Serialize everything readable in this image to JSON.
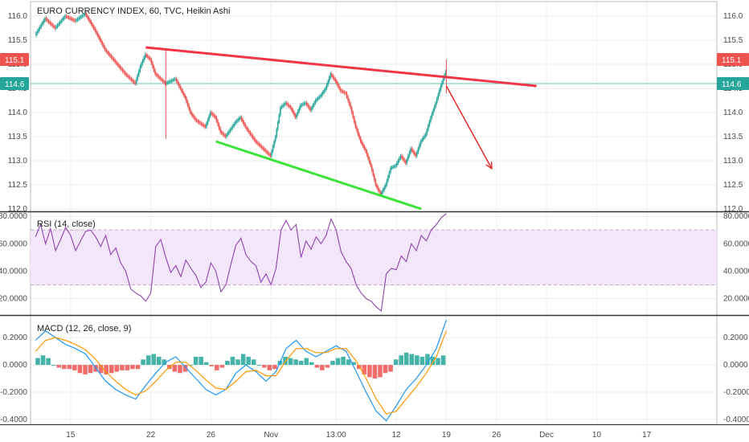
{
  "chart_data": [
    {
      "type": "candlestick",
      "title": "EURO CURRENCY INDEX, 60, TVC, Heikin Ashi",
      "y_ticks": [
        "116.0",
        "115.5",
        "115.0",
        "114.5",
        "114.0",
        "113.5",
        "113.0",
        "112.5",
        "112.0"
      ],
      "y_tick_values": [
        116.0,
        115.5,
        115.0,
        114.5,
        114.0,
        113.5,
        113.0,
        112.5,
        112.0
      ],
      "ylim": [
        111.95,
        116.3
      ],
      "price_badges": [
        {
          "label": "115.1",
          "value": 115.1,
          "color": "#ef5350"
        },
        {
          "label": "114.6",
          "value": 114.6,
          "color": "#26a69a"
        }
      ],
      "current_price_line": 114.6,
      "price_path": [
        [
          0,
          115.6
        ],
        [
          2,
          115.95
        ],
        [
          4,
          115.75
        ],
        [
          6,
          116.0
        ],
        [
          8,
          115.9
        ],
        [
          10,
          116.05
        ],
        [
          12,
          115.7
        ],
        [
          14,
          115.3
        ],
        [
          16,
          115.05
        ],
        [
          18,
          114.8
        ],
        [
          20,
          114.6
        ],
        [
          21,
          114.95
        ],
        [
          22,
          115.2
        ],
        [
          23,
          115.1
        ],
        [
          24,
          114.8
        ],
        [
          26,
          114.6
        ],
        [
          28,
          114.7
        ],
        [
          29,
          114.5
        ],
        [
          30,
          114.3
        ],
        [
          31,
          114.0
        ],
        [
          32,
          113.85
        ],
        [
          34,
          113.7
        ],
        [
          35,
          114.0
        ],
        [
          36,
          113.9
        ],
        [
          37,
          113.6
        ],
        [
          38,
          113.5
        ],
        [
          40,
          113.8
        ],
        [
          41,
          113.9
        ],
        [
          42,
          113.7
        ],
        [
          44,
          113.4
        ],
        [
          46,
          113.2
        ],
        [
          47,
          113.1
        ],
        [
          48,
          113.5
        ],
        [
          49,
          114.1
        ],
        [
          50,
          114.2
        ],
        [
          51,
          114.1
        ],
        [
          52,
          113.9
        ],
        [
          53,
          114.15
        ],
        [
          54,
          114.2
        ],
        [
          55,
          114.05
        ],
        [
          56,
          114.25
        ],
        [
          57,
          114.35
        ],
        [
          58,
          114.5
        ],
        [
          59,
          114.8
        ],
        [
          60,
          114.65
        ],
        [
          61,
          114.45
        ],
        [
          62,
          114.4
        ],
        [
          63,
          114.1
        ],
        [
          64,
          113.7
        ],
        [
          65,
          113.4
        ],
        [
          66,
          113.2
        ],
        [
          67,
          112.9
        ],
        [
          68,
          112.5
        ],
        [
          69,
          112.3
        ],
        [
          70,
          112.5
        ],
        [
          71,
          112.85
        ],
        [
          72,
          112.9
        ],
        [
          73,
          113.1
        ],
        [
          74,
          112.95
        ],
        [
          75,
          113.25
        ],
        [
          76,
          113.1
        ],
        [
          77,
          113.4
        ],
        [
          78,
          113.55
        ],
        [
          79,
          113.9
        ],
        [
          80,
          114.2
        ],
        [
          81,
          114.55
        ],
        [
          82,
          114.85
        ]
      ],
      "wicks": [
        {
          "x": 26,
          "high": 115.3,
          "low": 113.45
        },
        {
          "x": 82,
          "high": 115.1,
          "low": 114.4
        }
      ],
      "annotations": [
        {
          "type": "trendline",
          "color": "#f23645",
          "from": [
            22,
            115.35
          ],
          "to": [
            100,
            114.55
          ]
        },
        {
          "type": "trendline",
          "color": "#3be33b",
          "from": [
            36,
            113.4
          ],
          "to": [
            77,
            112.0
          ]
        },
        {
          "type": "arrow",
          "color": "#e8201e",
          "from": [
            82,
            114.55
          ],
          "to": [
            91,
            112.85
          ]
        }
      ]
    },
    {
      "type": "line",
      "title": "RSI (14, close)",
      "y_ticks": [
        "80.0000",
        "60.0000",
        "40.0000",
        "20.0000"
      ],
      "y_tick_values": [
        80,
        60,
        40,
        20
      ],
      "ylim": [
        8,
        83
      ],
      "band": [
        30,
        70
      ],
      "series": [
        {
          "values": [
            [
              0,
              65
            ],
            [
              1,
              74
            ],
            [
              2,
              60
            ],
            [
              3,
              71
            ],
            [
              4,
              55
            ],
            [
              5,
              63
            ],
            [
              6,
              72
            ],
            [
              7,
              66
            ],
            [
              8,
              55
            ],
            [
              9,
              62
            ],
            [
              10,
              69
            ],
            [
              11,
              70
            ],
            [
              12,
              65
            ],
            [
              13,
              58
            ],
            [
              14,
              66
            ],
            [
              15,
              52
            ],
            [
              16,
              57
            ],
            [
              17,
              46
            ],
            [
              18,
              40
            ],
            [
              19,
              27
            ],
            [
              20,
              24
            ],
            [
              21,
              22
            ],
            [
              22,
              18
            ],
            [
              23,
              24
            ],
            [
              24,
              58
            ],
            [
              25,
              63
            ],
            [
              26,
              50
            ],
            [
              27,
              39
            ],
            [
              28,
              44
            ],
            [
              29,
              36
            ],
            [
              30,
              48
            ],
            [
              31,
              42
            ],
            [
              32,
              37
            ],
            [
              33,
              28
            ],
            [
              34,
              32
            ],
            [
              35,
              46
            ],
            [
              36,
              40
            ],
            [
              37,
              25
            ],
            [
              38,
              30
            ],
            [
              39,
              45
            ],
            [
              40,
              59
            ],
            [
              41,
              64
            ],
            [
              42,
              52
            ],
            [
              43,
              47
            ],
            [
              44,
              44
            ],
            [
              45,
              32
            ],
            [
              46,
              38
            ],
            [
              47,
              30
            ],
            [
              48,
              42
            ],
            [
              49,
              70
            ],
            [
              50,
              77
            ],
            [
              51,
              70
            ],
            [
              52,
              74
            ],
            [
              53,
              50
            ],
            [
              54,
              62
            ],
            [
              55,
              56
            ],
            [
              56,
              65
            ],
            [
              57,
              60
            ],
            [
              58,
              66
            ],
            [
              59,
              78
            ],
            [
              60,
              70
            ],
            [
              61,
              54
            ],
            [
              62,
              47
            ],
            [
              63,
              42
            ],
            [
              64,
              30
            ],
            [
              65,
              24
            ],
            [
              66,
              20
            ],
            [
              67,
              18
            ],
            [
              68,
              14
            ],
            [
              69,
              11
            ],
            [
              70,
              38
            ],
            [
              71,
              42
            ],
            [
              72,
              41
            ],
            [
              73,
              51
            ],
            [
              74,
              47
            ],
            [
              75,
              60
            ],
            [
              76,
              55
            ],
            [
              77,
              66
            ],
            [
              78,
              62
            ],
            [
              79,
              70
            ],
            [
              80,
              74
            ],
            [
              81,
              79
            ],
            [
              82,
              82
            ]
          ],
          "color": "#8e44ad"
        }
      ]
    },
    {
      "type": "bar",
      "title": "MACD (12, 26, close, 9)",
      "y_ticks": [
        "0.2000",
        "0.0000",
        "-0.2000",
        "-0.4000"
      ],
      "y_tick_values": [
        0.2,
        0,
        -0.2,
        -0.4
      ],
      "ylim": [
        -0.43,
        0.36
      ],
      "series": [
        {
          "name": "MACD",
          "color": "#2196f3",
          "values": [
            [
              0,
              0.18
            ],
            [
              2,
              0.25
            ],
            [
              4,
              0.2
            ],
            [
              6,
              0.15
            ],
            [
              8,
              0.12
            ],
            [
              10,
              0.08
            ],
            [
              12,
              -0.02
            ],
            [
              14,
              -0.12
            ],
            [
              16,
              -0.18
            ],
            [
              18,
              -0.22
            ],
            [
              20,
              -0.25
            ],
            [
              22,
              -0.15
            ],
            [
              24,
              -0.06
            ],
            [
              26,
              0.02
            ],
            [
              28,
              0.06
            ],
            [
              30,
              -0.02
            ],
            [
              32,
              -0.1
            ],
            [
              34,
              -0.18
            ],
            [
              36,
              -0.22
            ],
            [
              38,
              -0.18
            ],
            [
              40,
              -0.06
            ],
            [
              42,
              0.0
            ],
            [
              44,
              -0.05
            ],
            [
              46,
              -0.12
            ],
            [
              48,
              -0.05
            ],
            [
              50,
              0.12
            ],
            [
              52,
              0.18
            ],
            [
              54,
              0.1
            ],
            [
              56,
              0.06
            ],
            [
              58,
              0.1
            ],
            [
              60,
              0.14
            ],
            [
              62,
              0.1
            ],
            [
              64,
              -0.05
            ],
            [
              66,
              -0.2
            ],
            [
              68,
              -0.34
            ],
            [
              70,
              -0.41
            ],
            [
              72,
              -0.3
            ],
            [
              74,
              -0.18
            ],
            [
              76,
              -0.1
            ],
            [
              78,
              0.0
            ],
            [
              80,
              0.12
            ],
            [
              82,
              0.33
            ]
          ]
        },
        {
          "name": "Signal",
          "color": "#ff9800",
          "values": [
            [
              0,
              0.1
            ],
            [
              2,
              0.18
            ],
            [
              4,
              0.2
            ],
            [
              6,
              0.18
            ],
            [
              8,
              0.15
            ],
            [
              10,
              0.11
            ],
            [
              12,
              0.04
            ],
            [
              14,
              -0.05
            ],
            [
              16,
              -0.12
            ],
            [
              18,
              -0.18
            ],
            [
              20,
              -0.22
            ],
            [
              22,
              -0.19
            ],
            [
              24,
              -0.12
            ],
            [
              26,
              -0.04
            ],
            [
              28,
              0.02
            ],
            [
              30,
              0.02
            ],
            [
              32,
              -0.04
            ],
            [
              34,
              -0.11
            ],
            [
              36,
              -0.17
            ],
            [
              38,
              -0.18
            ],
            [
              40,
              -0.12
            ],
            [
              42,
              -0.05
            ],
            [
              44,
              -0.04
            ],
            [
              46,
              -0.08
            ],
            [
              48,
              -0.08
            ],
            [
              50,
              0.03
            ],
            [
              52,
              0.12
            ],
            [
              54,
              0.12
            ],
            [
              56,
              0.09
            ],
            [
              58,
              0.09
            ],
            [
              60,
              0.12
            ],
            [
              62,
              0.12
            ],
            [
              64,
              0.03
            ],
            [
              66,
              -0.1
            ],
            [
              68,
              -0.25
            ],
            [
              70,
              -0.36
            ],
            [
              72,
              -0.34
            ],
            [
              74,
              -0.25
            ],
            [
              76,
              -0.16
            ],
            [
              78,
              -0.06
            ],
            [
              80,
              0.06
            ],
            [
              82,
              0.25
            ]
          ]
        }
      ],
      "histogram": [
        0.05,
        0.07,
        0.05,
        0.0,
        -0.02,
        -0.03,
        -0.03,
        -0.04,
        -0.06,
        -0.07,
        -0.06,
        -0.05,
        -0.06,
        -0.07,
        -0.06,
        -0.05,
        -0.04,
        -0.04,
        -0.03,
        -0.03,
        0.04,
        0.07,
        0.08,
        0.06,
        0.04,
        -0.03,
        -0.05,
        -0.06,
        -0.05,
        0.0,
        0.06,
        0.06,
        0.02,
        -0.01,
        -0.04,
        -0.02,
        0.03,
        0.06,
        0.04,
        0.08,
        0.06,
        0.04,
        0.0,
        -0.02,
        -0.04,
        -0.03,
        0.03,
        0.06,
        0.05,
        0.04,
        0.03,
        0.05,
        0.02,
        -0.02,
        -0.04,
        -0.02,
        0.03,
        0.05,
        0.06,
        0.04,
        0.02,
        -0.03,
        -0.07,
        -0.09,
        -0.1,
        -0.09,
        -0.06,
        -0.05,
        0.04,
        0.07,
        0.09,
        0.08,
        0.07,
        0.06,
        0.08,
        0.06,
        0.05,
        0.07
      ]
    }
  ],
  "x_axis": {
    "labels": [
      "15",
      "22",
      "26",
      "Nov",
      "13:00",
      "12",
      "19",
      "26",
      "Dec",
      "10",
      "17"
    ],
    "positions": [
      7,
      23,
      35,
      47,
      60,
      72,
      82,
      92,
      102,
      112,
      122
    ],
    "range": [
      -1,
      136
    ]
  },
  "colors": {
    "up": "#26a69a",
    "down": "#ef5350",
    "grid": "#eeeeee",
    "axis": "#555555"
  }
}
